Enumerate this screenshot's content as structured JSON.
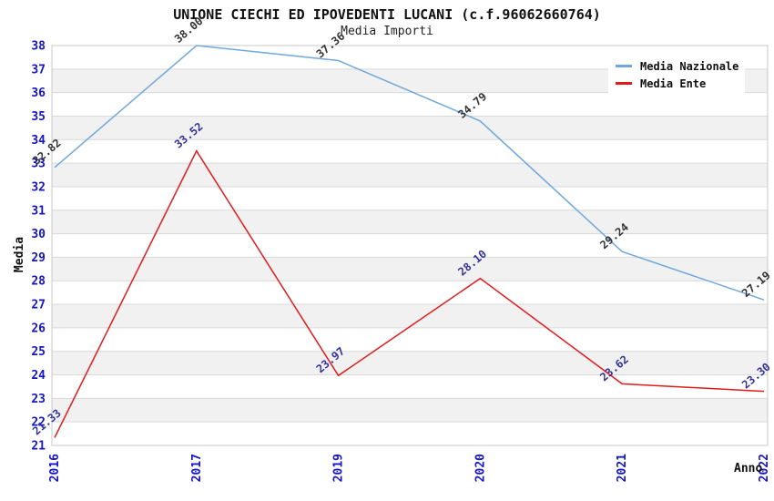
{
  "header": {
    "title": "UNIONE CIECHI ED IPOVEDENTI LUCANI (c.f.96062660764)",
    "subtitle": "Media Importi"
  },
  "chart_data": {
    "type": "line",
    "title": "UNIONE CIECHI ED IPOVEDENTI LUCANI (c.f.96062660764)",
    "subtitle": "Media Importi",
    "xlabel": "Anno",
    "ylabel": "Media",
    "categories": [
      "2016",
      "2017",
      "2019",
      "2020",
      "2021",
      "2022"
    ],
    "series": [
      {
        "name": "Media Nazionale",
        "color": "#6FA8DC",
        "label_color": "#333333",
        "values": [
          32.82,
          38.0,
          37.36,
          34.79,
          29.24,
          27.19
        ]
      },
      {
        "name": "Media Ente",
        "color": "#E01B1B",
        "label_color": "#333399",
        "values": [
          21.33,
          33.52,
          23.97,
          28.1,
          23.62,
          23.3
        ]
      }
    ],
    "ylim": [
      21,
      38
    ],
    "ytick_step": 1,
    "grid": "horizontal-bands",
    "legend_position": "top-right",
    "band_fill": "#f1f1f1",
    "band_alt_fill": "#ffffff",
    "gridline_color": "#d9d9d9",
    "border_color": "#c9c9c9",
    "tick_label_color": "#1414CC",
    "value_label_decimals": 2
  }
}
